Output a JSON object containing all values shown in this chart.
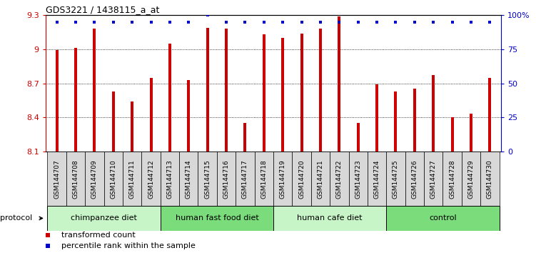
{
  "title": "GDS3221 / 1438115_a_at",
  "samples": [
    "GSM144707",
    "GSM144708",
    "GSM144709",
    "GSM144710",
    "GSM144711",
    "GSM144712",
    "GSM144713",
    "GSM144714",
    "GSM144715",
    "GSM144716",
    "GSM144717",
    "GSM144718",
    "GSM144719",
    "GSM144720",
    "GSM144721",
    "GSM144722",
    "GSM144723",
    "GSM144724",
    "GSM144725",
    "GSM144726",
    "GSM144727",
    "GSM144728",
    "GSM144729",
    "GSM144730"
  ],
  "bar_values": [
    8.99,
    9.01,
    9.18,
    8.63,
    8.54,
    8.75,
    9.05,
    8.73,
    9.19,
    9.18,
    8.35,
    9.13,
    9.1,
    9.14,
    9.18,
    9.29,
    8.35,
    8.69,
    8.63,
    8.65,
    8.77,
    8.4,
    8.43,
    8.75
  ],
  "percentile_values": [
    95,
    95,
    95,
    95,
    95,
    95,
    95,
    95,
    100,
    95,
    95,
    95,
    95,
    95,
    95,
    95,
    95,
    95,
    95,
    95,
    95,
    95,
    95,
    95
  ],
  "groups": [
    {
      "label": "chimpanzee diet",
      "start": 0,
      "end": 6,
      "color": "#c8f5c8"
    },
    {
      "label": "human fast food diet",
      "start": 6,
      "end": 12,
      "color": "#7adc7a"
    },
    {
      "label": "human cafe diet",
      "start": 12,
      "end": 18,
      "color": "#c8f5c8"
    },
    {
      "label": "control",
      "start": 18,
      "end": 24,
      "color": "#7adc7a"
    }
  ],
  "protocol_label": "protocol",
  "bar_color": "#cc0000",
  "percentile_color": "#0000cc",
  "ylim_left": [
    8.1,
    9.3
  ],
  "ylim_right": [
    0,
    100
  ],
  "yticks_left": [
    8.1,
    8.4,
    8.7,
    9.0,
    9.3
  ],
  "yticks_right": [
    0,
    25,
    50,
    75,
    100
  ],
  "ytick_labels_left": [
    "8.1",
    "8.4",
    "8.7",
    "9",
    "9.3"
  ],
  "ytick_labels_right": [
    "0",
    "25",
    "50",
    "75",
    "100%"
  ],
  "legend_items": [
    {
      "label": "transformed count",
      "color": "#cc0000",
      "marker": "s"
    },
    {
      "label": "percentile rank within the sample",
      "color": "#0000cc",
      "marker": "s"
    }
  ],
  "background_color": "#ffffff",
  "bar_width": 0.15,
  "label_box_color": "#d8d8d8",
  "n_samples": 24
}
